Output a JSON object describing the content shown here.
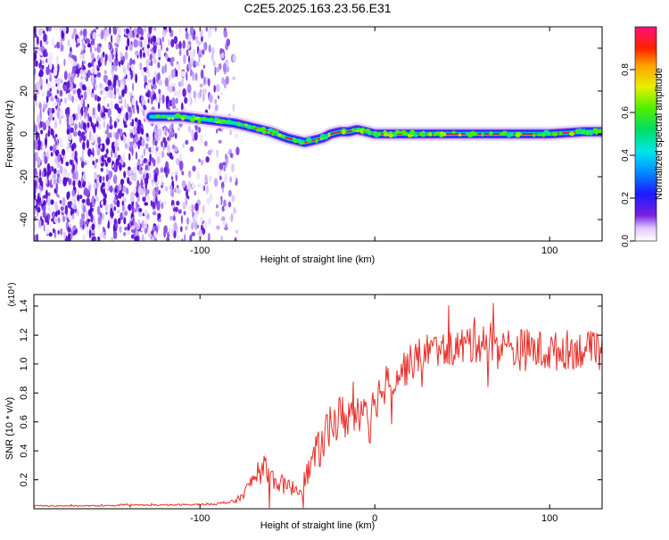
{
  "title": "C2E5.2025.163.23.56.E31",
  "chart_data": [
    {
      "type": "heatmap",
      "xlabel": "Height of straight line (km)",
      "ylabel": "Frequency (Hz)",
      "xlim": [
        -195,
        130
      ],
      "ylim": [
        -50,
        50
      ],
      "xticks": [
        -100,
        100
      ],
      "yticks": [
        -40,
        -20,
        0,
        20,
        40
      ],
      "colorbar": {
        "label": "Normalized spectral amplitude",
        "range": [
          0,
          1
        ],
        "ticks": [
          "0.0",
          "0.2",
          "0.4",
          "0.6",
          "0.8"
        ]
      },
      "noise_region": {
        "x_from": -195,
        "x_to": -78
      },
      "ridge": {
        "x": [
          -128,
          -120,
          -110,
          -100,
          -90,
          -80,
          -70,
          -60,
          -50,
          -45,
          -40,
          -35,
          -30,
          -25,
          -20,
          -15,
          -10,
          -5,
          0,
          10,
          20,
          40,
          60,
          80,
          100,
          120,
          130
        ],
        "y": [
          8,
          8,
          8,
          7,
          6,
          5,
          3,
          1,
          -2,
          -3,
          -4,
          -3,
          -2,
          0,
          1,
          1,
          2,
          1,
          0,
          0,
          0,
          0,
          0,
          0,
          0,
          1,
          1
        ],
        "peak_from_x": -75
      }
    },
    {
      "type": "line",
      "xlabel": "Height of straight line (km)",
      "ylabel": "SNR (10 * v/v)",
      "y_multiplier": "(x10⁴)",
      "xlim": [
        -195,
        130
      ],
      "ylim": [
        0,
        1.48
      ],
      "xticks": [
        -100,
        0,
        100
      ],
      "yticks": [
        0.2,
        0.4,
        0.6,
        0.8,
        1.0,
        1.2,
        1.4
      ],
      "color": "#e8302a",
      "series": [
        {
          "x": [
            -195,
            -180,
            -160,
            -140,
            -120,
            -100,
            -90,
            -80,
            -75,
            -70,
            -65,
            -62,
            -60,
            -55,
            -50,
            -45,
            -42,
            -40,
            -35,
            -30,
            -25,
            -20,
            -15,
            -10,
            -5,
            -3,
            0,
            5,
            10,
            15,
            20,
            25,
            30,
            40,
            50,
            55,
            60,
            70,
            80,
            90,
            100,
            110,
            120,
            130
          ],
          "y": [
            0.02,
            0.02,
            0.02,
            0.025,
            0.025,
            0.03,
            0.035,
            0.05,
            0.1,
            0.2,
            0.25,
            0.3,
            0.22,
            0.18,
            0.15,
            0.14,
            0.12,
            0.2,
            0.35,
            0.45,
            0.6,
            0.62,
            0.65,
            0.68,
            0.75,
            0.6,
            0.75,
            0.85,
            0.9,
            0.95,
            1.0,
            1.05,
            1.1,
            1.1,
            1.12,
            1.15,
            1.18,
            1.12,
            1.1,
            1.1,
            1.08,
            1.1,
            1.1,
            1.08
          ],
          "noise": [
            0.004,
            0.004,
            0.004,
            0.005,
            0.005,
            0.006,
            0.008,
            0.015,
            0.03,
            0.06,
            0.08,
            0.1,
            0.08,
            0.07,
            0.06,
            0.05,
            0.05,
            0.08,
            0.12,
            0.15,
            0.17,
            0.17,
            0.17,
            0.17,
            0.17,
            0.17,
            0.15,
            0.14,
            0.14,
            0.14,
            0.13,
            0.13,
            0.12,
            0.12,
            0.14,
            0.16,
            0.17,
            0.16,
            0.15,
            0.15,
            0.14,
            0.14,
            0.13,
            0.13
          ]
        }
      ]
    }
  ]
}
